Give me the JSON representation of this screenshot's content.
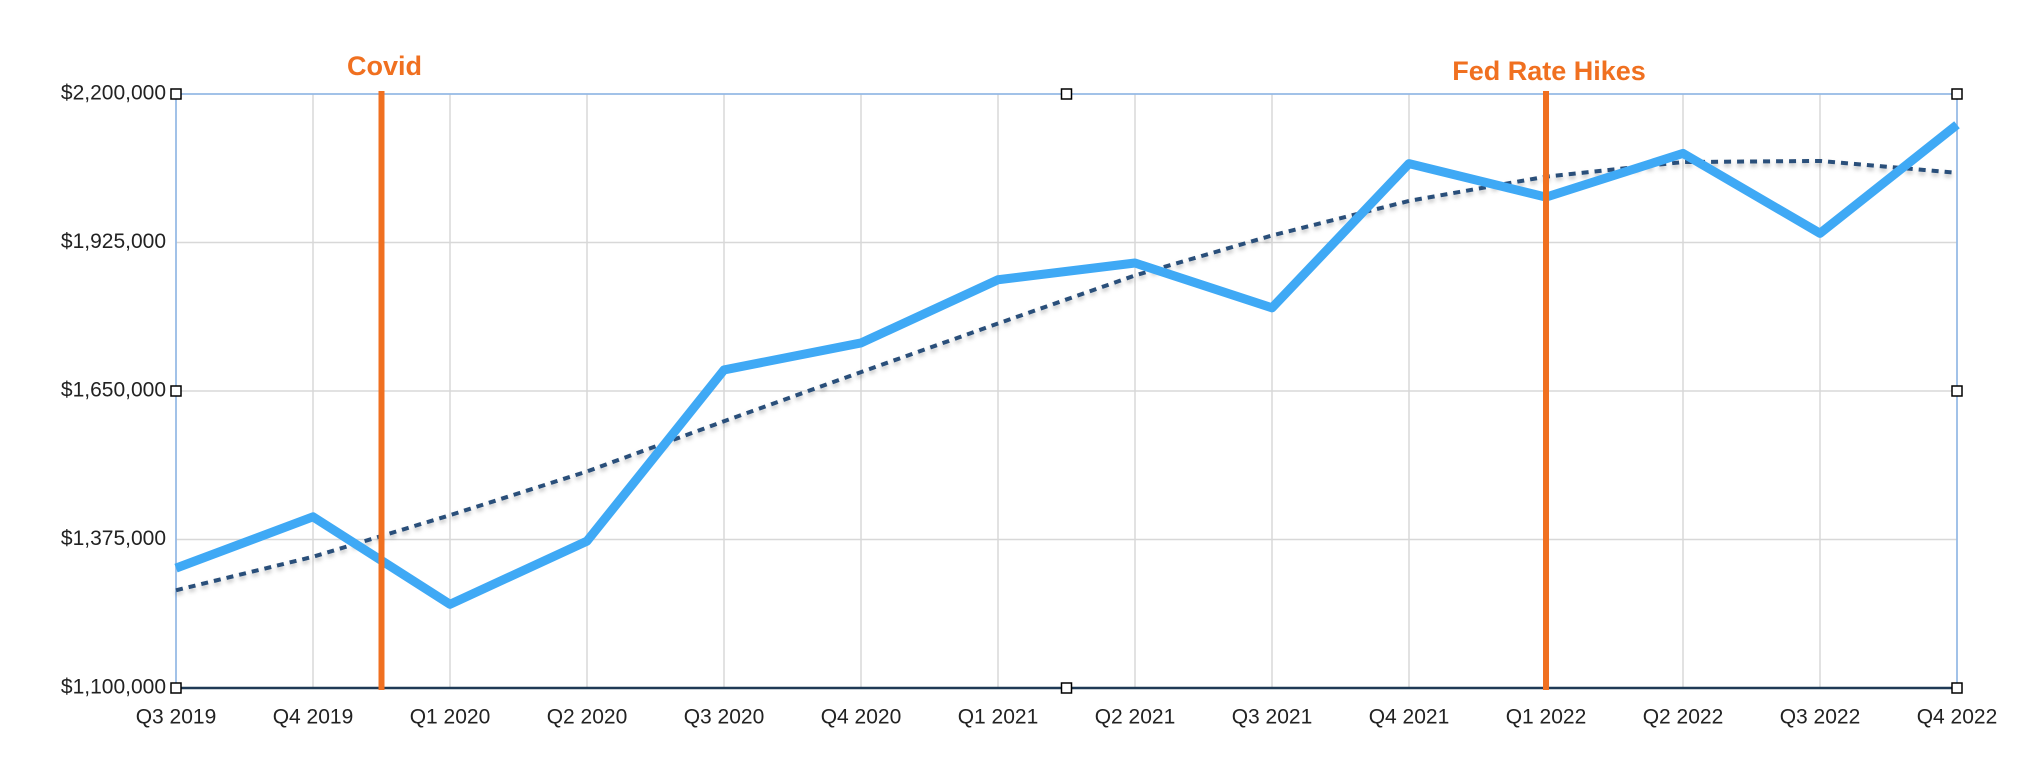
{
  "chart_data": {
    "type": "line",
    "categories": [
      "Q3 2019",
      "Q4 2019",
      "Q1 2020",
      "Q2 2020",
      "Q3 2020",
      "Q4 2020",
      "Q1 2021",
      "Q2 2021",
      "Q3 2021",
      "Q4 2021",
      "Q1 2022",
      "Q2 2022",
      "Q3 2022",
      "Q4 2022"
    ],
    "series": [
      {
        "color": "#3fa9f5",
        "style": "solid",
        "values": [
          1322000,
          1417000,
          1255000,
          1372000,
          1689000,
          1739000,
          1856000,
          1887000,
          1804000,
          2071000,
          2009000,
          2090000,
          1942000,
          2143000
        ]
      },
      {
        "color": "#2a4f7a",
        "style": "dashed",
        "values": [
          1281000,
          1343000,
          1420000,
          1501000,
          1594000,
          1685000,
          1775000,
          1864000,
          1938000,
          2002000,
          2047000,
          2074000,
          2076000,
          2054000
        ]
      }
    ],
    "ylim": [
      1100000,
      2200000
    ],
    "yticks": [
      {
        "value": 1100000,
        "label": "$1,100,000"
      },
      {
        "value": 1375000,
        "label": "$1,375,000"
      },
      {
        "value": 1650000,
        "label": "$1,650,000"
      },
      {
        "value": 1925000,
        "label": "$1,925,000"
      },
      {
        "value": 2200000,
        "label": "$2,200,000"
      }
    ],
    "grid": true,
    "annotations": [
      {
        "text": "Covid",
        "x": 1.5,
        "color": "#f07020"
      },
      {
        "text": "Fed Rate Hikes",
        "x": 10,
        "color": "#f07020"
      }
    ]
  }
}
